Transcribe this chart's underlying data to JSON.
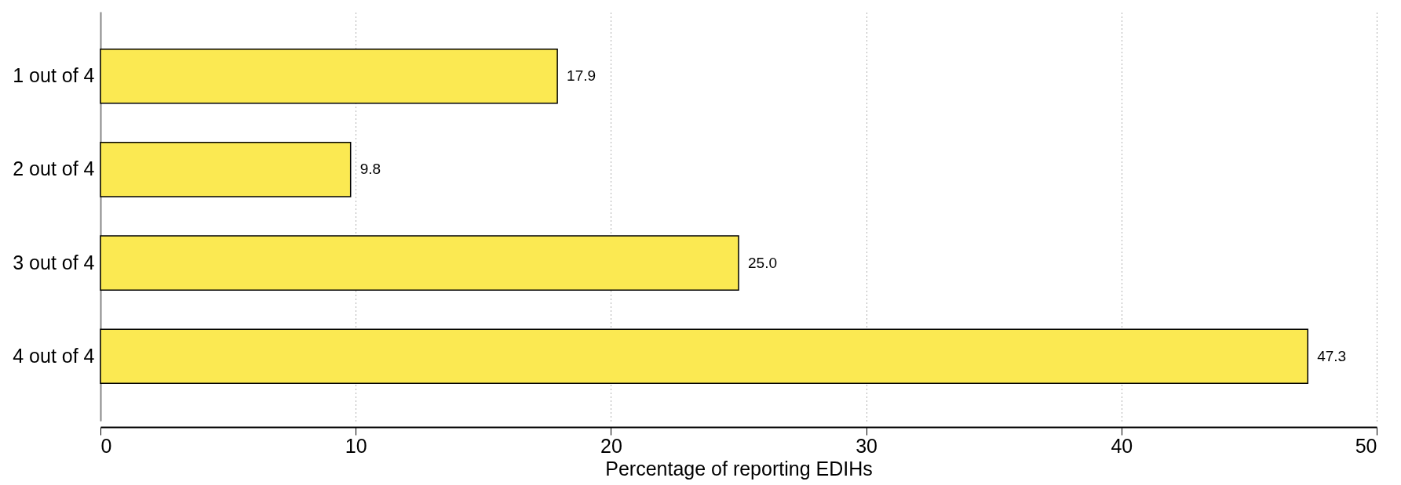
{
  "chart_data": {
    "type": "bar",
    "orientation": "horizontal",
    "xlabel": "Percentage of reporting EDIHs",
    "categories": [
      "1 out of 4",
      "2 out of 4",
      "3 out of 4",
      "4 out of 4"
    ],
    "values": [
      17.9,
      9.8,
      25.0,
      47.3
    ],
    "color": "#fbe952",
    "xlim": [
      0,
      50
    ],
    "xticks": [
      0,
      10,
      20,
      30,
      40,
      50
    ],
    "grid": "x",
    "value_labels": [
      "17.9",
      "9.8",
      "25.0",
      "47.3"
    ]
  }
}
